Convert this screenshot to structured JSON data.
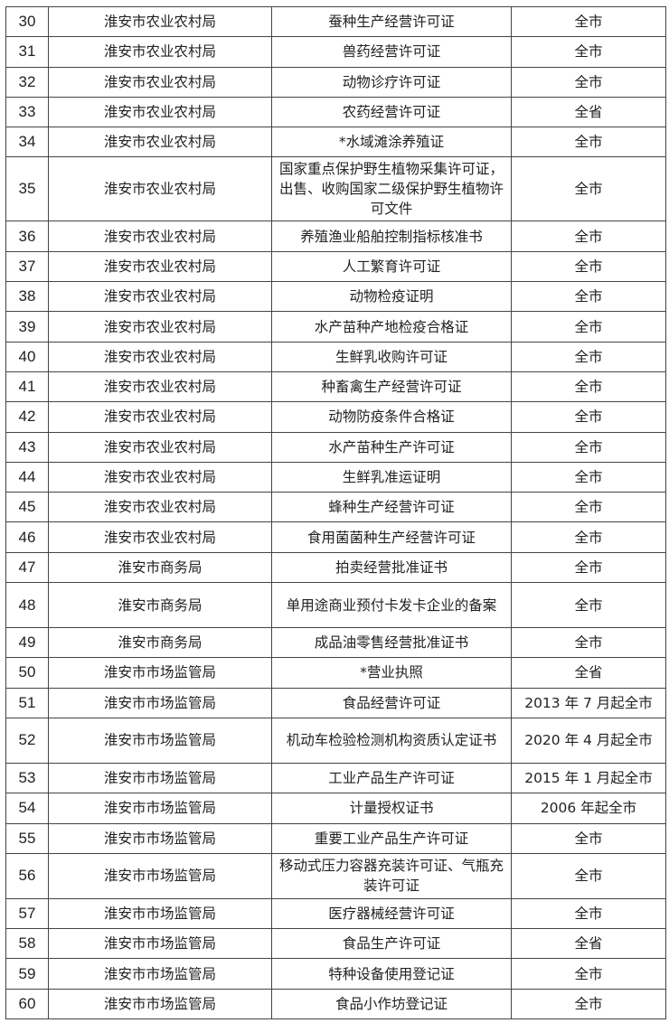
{
  "rows": [
    {
      "no": "30",
      "dept": "淮安市农业农村局",
      "item": "蚕种生产经营许可证",
      "scope": "全市"
    },
    {
      "no": "31",
      "dept": "淮安市农业农村局",
      "item": "兽药经营许可证",
      "scope": "全市"
    },
    {
      "no": "32",
      "dept": "淮安市农业农村局",
      "item": "动物诊疗许可证",
      "scope": "全市"
    },
    {
      "no": "33",
      "dept": "淮安市农业农村局",
      "item": "农药经营许可证",
      "scope": "全省"
    },
    {
      "no": "34",
      "dept": "淮安市农业农村局",
      "item": "*水域滩涂养殖证",
      "scope": "全市"
    },
    {
      "no": "35",
      "dept": "淮安市农业农村局",
      "item": "国家重点保护野生植物采集许可证，出售、收购国家二级保护野生植物许可文件",
      "scope": "全市",
      "lines": 3
    },
    {
      "no": "36",
      "dept": "淮安市农业农村局",
      "item": "养殖渔业船舶控制指标核准书",
      "scope": "全市"
    },
    {
      "no": "37",
      "dept": "淮安市农业农村局",
      "item": "人工繁育许可证",
      "scope": "全市"
    },
    {
      "no": "38",
      "dept": "淮安市农业农村局",
      "item": "动物检疫证明",
      "scope": "全市"
    },
    {
      "no": "39",
      "dept": "淮安市农业农村局",
      "item": "水产苗种产地检疫合格证",
      "scope": "全市"
    },
    {
      "no": "40",
      "dept": "淮安市农业农村局",
      "item": "生鲜乳收购许可证",
      "scope": "全市"
    },
    {
      "no": "41",
      "dept": "淮安市农业农村局",
      "item": "种畜禽生产经营许可证",
      "scope": "全市"
    },
    {
      "no": "42",
      "dept": "淮安市农业农村局",
      "item": "动物防疫条件合格证",
      "scope": "全市"
    },
    {
      "no": "43",
      "dept": "淮安市农业农村局",
      "item": "水产苗种生产许可证",
      "scope": "全市"
    },
    {
      "no": "44",
      "dept": "淮安市农业农村局",
      "item": "生鲜乳准运证明",
      "scope": "全市"
    },
    {
      "no": "45",
      "dept": "淮安市农业农村局",
      "item": "蜂种生产经营许可证",
      "scope": "全市"
    },
    {
      "no": "46",
      "dept": "淮安市农业农村局",
      "item": "食用菌菌种生产经营许可证",
      "scope": "全市"
    },
    {
      "no": "47",
      "dept": "淮安市商务局",
      "item": "拍卖经营批准证书",
      "scope": "全市"
    },
    {
      "no": "48",
      "dept": "淮安市商务局",
      "item": "单用途商业预付卡发卡企业的备案",
      "scope": "全市",
      "lines": 2
    },
    {
      "no": "49",
      "dept": "淮安市商务局",
      "item": "成品油零售经营批准证书",
      "scope": "全市"
    },
    {
      "no": "50",
      "dept": "淮安市市场监管局",
      "item": "*营业执照",
      "scope": "全省"
    },
    {
      "no": "51",
      "dept": "淮安市市场监管局",
      "item": "食品经营许可证",
      "scope": "2013 年 7 月起全市"
    },
    {
      "no": "52",
      "dept": "淮安市市场监管局",
      "item": "机动车检验检测机构资质认定证书",
      "scope": "2020 年 4 月起全市",
      "lines": 2
    },
    {
      "no": "53",
      "dept": "淮安市市场监管局",
      "item": "工业产品生产许可证",
      "scope": "2015 年 1 月起全市"
    },
    {
      "no": "54",
      "dept": "淮安市市场监管局",
      "item": "计量授权证书",
      "scope": "2006 年起全市"
    },
    {
      "no": "55",
      "dept": "淮安市市场监管局",
      "item": "重要工业产品生产许可证",
      "scope": "全市"
    },
    {
      "no": "56",
      "dept": "淮安市市场监管局",
      "item": "移动式压力容器充装许可证、气瓶充装许可证",
      "scope": "全市",
      "lines": 2
    },
    {
      "no": "57",
      "dept": "淮安市市场监管局",
      "item": "医疗器械经营许可证",
      "scope": "全市"
    },
    {
      "no": "58",
      "dept": "淮安市市场监管局",
      "item": "食品生产许可证",
      "scope": "全省"
    },
    {
      "no": "59",
      "dept": "淮安市市场监管局",
      "item": "特种设备使用登记证",
      "scope": "全市"
    },
    {
      "no": "60",
      "dept": "淮安市市场监管局",
      "item": "食品小作坊登记证",
      "scope": "全市"
    }
  ]
}
